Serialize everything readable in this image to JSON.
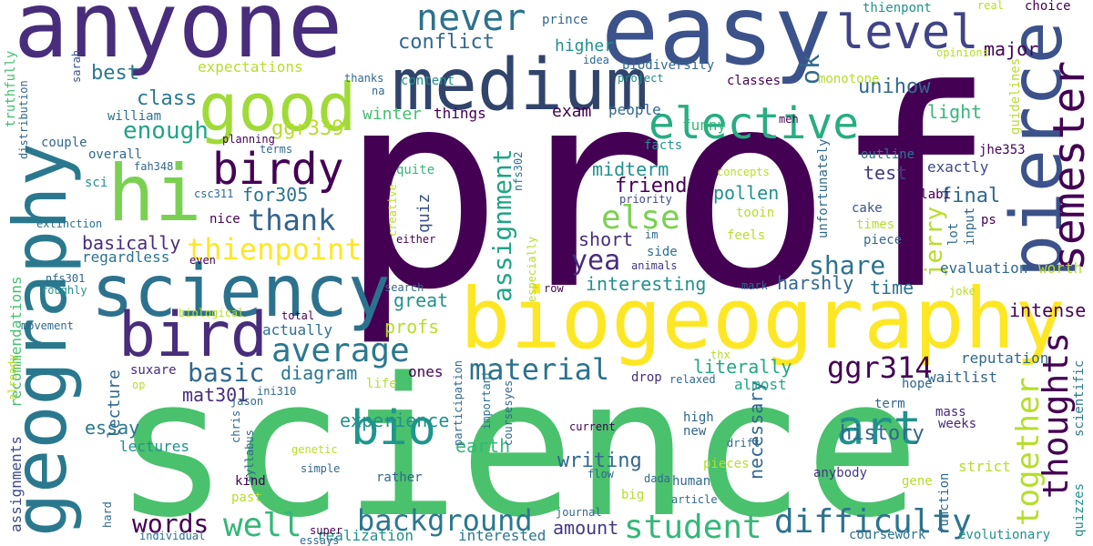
{
  "palette": {
    "background": "#ffffff",
    "dark_purple": "#440154",
    "indigo": "#3b528b",
    "teal": "#21918c",
    "green": "#5ec962",
    "yellow": "#fde725"
  },
  "words": [
    {
      "text": "prof",
      "color": "#440154"
    },
    {
      "text": "science",
      "color": "#4ac16d"
    },
    {
      "text": "anyone",
      "color": "#472d7b"
    },
    {
      "text": "easy",
      "color": "#3b528b"
    },
    {
      "text": "biogeography",
      "color": "#fde725"
    },
    {
      "text": "geography",
      "color": "#2a788e"
    },
    {
      "text": "sciency",
      "color": "#2c728e"
    },
    {
      "text": "medium",
      "color": "#31446b"
    },
    {
      "text": "pierce",
      "color": "#3b528b"
    },
    {
      "text": "good",
      "color": "#a0da39"
    },
    {
      "text": "hi",
      "color": "#7ad151"
    },
    {
      "text": "bird",
      "color": "#472d7b"
    },
    {
      "text": "semester",
      "color": "#440154"
    },
    {
      "text": "elective",
      "color": "#27ad81"
    },
    {
      "text": "level",
      "color": "#414487"
    },
    {
      "text": "never",
      "color": "#2c728e"
    },
    {
      "text": "birdy",
      "color": "#440154"
    },
    {
      "text": "art",
      "color": "#21918c"
    },
    {
      "text": "bio",
      "color": "#1f968b"
    },
    {
      "text": "average",
      "color": "#2a788e"
    },
    {
      "text": "thoughts",
      "color": "#440154"
    },
    {
      "text": "together",
      "color": "#b5de2b"
    },
    {
      "text": "difficulty",
      "color": "#2c728e"
    },
    {
      "text": "student",
      "color": "#35b779"
    },
    {
      "text": "background",
      "color": "#2a788e"
    },
    {
      "text": "well",
      "color": "#35b779"
    },
    {
      "text": "words",
      "color": "#440154"
    },
    {
      "text": "material",
      "color": "#2c728e"
    },
    {
      "text": "thienpoint",
      "color": "#fde725"
    },
    {
      "text": "thank",
      "color": "#33638d"
    },
    {
      "text": "assignment",
      "color": "#20a486"
    },
    {
      "text": "else",
      "color": "#7ad151"
    },
    {
      "text": "yea",
      "color": "#472d7b"
    },
    {
      "text": "ggr314",
      "color": "#440154"
    },
    {
      "text": "basic",
      "color": "#31688e"
    },
    {
      "text": "share",
      "color": "#2c728e"
    },
    {
      "text": "jerry",
      "color": "#b5de2b"
    },
    {
      "text": "ok",
      "color": "#31688e"
    },
    {
      "text": "enough",
      "color": "#20a486"
    },
    {
      "text": "ggr339",
      "color": "#b5de2b"
    },
    {
      "text": "conflict",
      "color": "#31688e"
    },
    {
      "text": "unihow",
      "color": "#31688e"
    },
    {
      "text": "major",
      "color": "#440154"
    },
    {
      "text": "basically",
      "color": "#472d7b"
    },
    {
      "text": "for305",
      "color": "#2c728e"
    },
    {
      "text": "class",
      "color": "#2a788e"
    },
    {
      "text": "best",
      "color": "#2a788e"
    },
    {
      "text": "friend",
      "color": "#440154"
    },
    {
      "text": "midterm",
      "color": "#21918c"
    },
    {
      "text": "pollen",
      "color": "#21918c"
    },
    {
      "text": "final",
      "color": "#31688e"
    },
    {
      "text": "test",
      "color": "#443983"
    },
    {
      "text": "intense",
      "color": "#440154"
    },
    {
      "text": "harshly",
      "color": "#31688e"
    },
    {
      "text": "interesting",
      "color": "#21918c"
    },
    {
      "text": "great",
      "color": "#21918c"
    },
    {
      "text": "profs",
      "color": "#b5de2b"
    },
    {
      "text": "history",
      "color": "#31688e"
    },
    {
      "text": "writing",
      "color": "#31688e"
    },
    {
      "text": "experience",
      "color": "#21918c"
    },
    {
      "text": "diagram",
      "color": "#2a788e"
    },
    {
      "text": "mat301",
      "color": "#472d7b"
    },
    {
      "text": "essay",
      "color": "#2a788e"
    },
    {
      "text": "earth",
      "color": "#35b779"
    },
    {
      "text": "amount",
      "color": "#443983"
    },
    {
      "text": "necessary",
      "color": "#31688e"
    },
    {
      "text": "literally",
      "color": "#22a884"
    },
    {
      "text": "short",
      "color": "#472d7b"
    },
    {
      "text": "time",
      "color": "#2c728e"
    },
    {
      "text": "light",
      "color": "#35b779"
    },
    {
      "text": "exactly",
      "color": "#3e4989"
    },
    {
      "text": "winter",
      "color": "#44bf70"
    },
    {
      "text": "exam",
      "color": "#440154"
    },
    {
      "text": "higher",
      "color": "#21918c"
    },
    {
      "text": "expectations",
      "color": "#b5de2b"
    },
    {
      "text": "quiz",
      "color": "#3b528b"
    },
    {
      "text": "lecture",
      "color": "#31688e"
    },
    {
      "text": "lectures",
      "color": "#21918c"
    },
    {
      "text": "regardless",
      "color": "#2c728e"
    },
    {
      "text": "recommendations",
      "color": "#44bf70"
    },
    {
      "text": "assignments",
      "color": "#3e4989"
    },
    {
      "text": "actually",
      "color": "#2c728e"
    },
    {
      "text": "realization",
      "color": "#21918c"
    },
    {
      "text": "interested",
      "color": "#2a788e"
    },
    {
      "text": "evaluation",
      "color": "#31688e"
    },
    {
      "text": "worth",
      "color": "#b5de2b"
    },
    {
      "text": "reputation",
      "color": "#31688e"
    },
    {
      "text": "waitlist",
      "color": "#31688e"
    },
    {
      "text": "strict",
      "color": "#b5de2b"
    },
    {
      "text": "evolutionary",
      "color": "#21918c"
    },
    {
      "text": "coursework",
      "color": "#2c728e"
    },
    {
      "text": "scientific",
      "color": "#2a788e"
    },
    {
      "text": "quizzes",
      "color": "#21918c"
    },
    {
      "text": "function",
      "color": "#31688e"
    },
    {
      "text": "gene",
      "color": "#b5de2b"
    },
    {
      "text": "anybody",
      "color": "#443983"
    },
    {
      "text": "weeks",
      "color": "#482878"
    },
    {
      "text": "mass",
      "color": "#482878"
    },
    {
      "text": "term",
      "color": "#31688e"
    },
    {
      "text": "hope",
      "color": "#31688e"
    },
    {
      "text": "ones",
      "color": "#440154"
    },
    {
      "text": "almost",
      "color": "#20a486"
    },
    {
      "text": "people",
      "color": "#31688e"
    },
    {
      "text": "things",
      "color": "#440154"
    },
    {
      "text": "funny",
      "color": "#35b779"
    },
    {
      "text": "facts",
      "color": "#21918c"
    },
    {
      "text": "classes",
      "color": "#440154"
    },
    {
      "text": "monotone",
      "color": "#b5de2b"
    },
    {
      "text": "biodiversity",
      "color": "#31688e"
    },
    {
      "text": "guidelines",
      "color": "#b5de2b"
    },
    {
      "text": "unfortunately",
      "color": "#31688e"
    },
    {
      "text": "cake",
      "color": "#3b528b"
    },
    {
      "text": "times",
      "color": "#b5de2b"
    },
    {
      "text": "piece",
      "color": "#31688e"
    },
    {
      "text": "feels",
      "color": "#b5de2b"
    },
    {
      "text": "tooin",
      "color": "#b5de2b"
    },
    {
      "text": "side",
      "color": "#2c728e"
    },
    {
      "text": "animals",
      "color": "#443983"
    },
    {
      "text": "priority",
      "color": "#3e4989"
    },
    {
      "text": "concepts",
      "color": "#b5de2b"
    },
    {
      "text": "syllabi",
      "color": "#440154"
    },
    {
      "text": "input",
      "color": "#31688e"
    },
    {
      "text": "lot",
      "color": "#31688e"
    },
    {
      "text": "ps",
      "color": "#440154"
    },
    {
      "text": "jhe353",
      "color": "#440154"
    },
    {
      "text": "outline",
      "color": "#2c728e"
    },
    {
      "text": "meh",
      "color": "#440154"
    },
    {
      "text": "choice",
      "color": "#440154"
    },
    {
      "text": "real",
      "color": "#b5de2b"
    },
    {
      "text": "thienpont",
      "color": "#21918c"
    },
    {
      "text": "prince",
      "color": "#31688e"
    },
    {
      "text": "content",
      "color": "#21918c"
    },
    {
      "text": "idea",
      "color": "#31688e"
    },
    {
      "text": "project",
      "color": "#21918c"
    },
    {
      "text": "opinions",
      "color": "#b5de2b"
    },
    {
      "text": "thanks",
      "color": "#31688e"
    },
    {
      "text": "na",
      "color": "#31688e"
    },
    {
      "text": "sarah",
      "color": "#3b528b"
    },
    {
      "text": "william",
      "color": "#2c728e"
    },
    {
      "text": "truthfully",
      "color": "#44bf70"
    },
    {
      "text": "couple",
      "color": "#31688e"
    },
    {
      "text": "overall",
      "color": "#31688e"
    },
    {
      "text": "planning",
      "color": "#440154"
    },
    {
      "text": "terms",
      "color": "#31688e"
    },
    {
      "text": "distribution",
      "color": "#31688e"
    },
    {
      "text": "sci",
      "color": "#21918c"
    },
    {
      "text": "fah348",
      "color": "#31688e"
    },
    {
      "text": "csc311",
      "color": "#31688e"
    },
    {
      "text": "extinction",
      "color": "#2c728e"
    },
    {
      "text": "nice",
      "color": "#440154"
    },
    {
      "text": "quite",
      "color": "#35b779"
    },
    {
      "text": "creative",
      "color": "#b5de2b"
    },
    {
      "text": "either",
      "color": "#440154"
    },
    {
      "text": "nfs302",
      "color": "#2c728e"
    },
    {
      "text": "im",
      "color": "#31688e"
    },
    {
      "text": "even",
      "color": "#440154"
    },
    {
      "text": "nfs301",
      "color": "#31688e"
    },
    {
      "text": "roughly",
      "color": "#21918c"
    },
    {
      "text": "search",
      "color": "#31688e"
    },
    {
      "text": "especially",
      "color": "#b5de2b"
    },
    {
      "text": "row",
      "color": "#440154"
    },
    {
      "text": "mark",
      "color": "#31688e"
    },
    {
      "text": "joke",
      "color": "#b5de2b"
    },
    {
      "text": "movement",
      "color": "#31688e"
    },
    {
      "text": "biological",
      "color": "#b5de2b"
    },
    {
      "text": "total",
      "color": "#440154"
    },
    {
      "text": "thx",
      "color": "#b5de2b"
    },
    {
      "text": "drop",
      "color": "#472d7b"
    },
    {
      "text": "relaxed",
      "color": "#31688e"
    },
    {
      "text": "already",
      "color": "#b5de2b"
    },
    {
      "text": "op",
      "color": "#b5de2b"
    },
    {
      "text": "suxare",
      "color": "#472d7b"
    },
    {
      "text": "jason",
      "color": "#31688e"
    },
    {
      "text": "ini310",
      "color": "#31688e"
    },
    {
      "text": "life",
      "color": "#b5de2b"
    },
    {
      "text": "participation",
      "color": "#31688e"
    },
    {
      "text": "important",
      "color": "#2c728e"
    },
    {
      "text": "coursesyes",
      "color": "#31688e"
    },
    {
      "text": "current",
      "color": "#440154"
    },
    {
      "text": "high",
      "color": "#31688e"
    },
    {
      "text": "new",
      "color": "#31688e"
    },
    {
      "text": "drift",
      "color": "#31688e"
    },
    {
      "text": "chris",
      "color": "#31688e"
    },
    {
      "text": "syllabus",
      "color": "#31688e"
    },
    {
      "text": "genetic",
      "color": "#b5de2b"
    },
    {
      "text": "kind",
      "color": "#440154"
    },
    {
      "text": "simple",
      "color": "#31688e"
    },
    {
      "text": "rather",
      "color": "#31688e"
    },
    {
      "text": "flow",
      "color": "#31688e"
    },
    {
      "text": "dada",
      "color": "#31688e"
    },
    {
      "text": "big",
      "color": "#b5de2b"
    },
    {
      "text": "pieces",
      "color": "#b5de2b"
    },
    {
      "text": "human",
      "color": "#31688e"
    },
    {
      "text": "article",
      "color": "#31688e"
    },
    {
      "text": "past",
      "color": "#b5de2b"
    },
    {
      "text": "hard",
      "color": "#31688e"
    },
    {
      "text": "super",
      "color": "#440154"
    },
    {
      "text": "essays",
      "color": "#31688e"
    },
    {
      "text": "journal",
      "color": "#31688e"
    },
    {
      "text": "individual",
      "color": "#2c728e"
    }
  ]
}
